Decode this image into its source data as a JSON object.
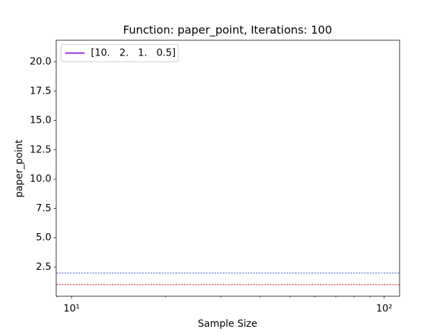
{
  "chart_data": {
    "type": "line",
    "title": "Function: paper_point, Iterations: 100",
    "xlabel": "Sample Size",
    "ylabel": "paper_point",
    "xscale": "log",
    "xlim": [
      8.93,
      112
    ],
    "ylim": [
      0.02,
      21.83
    ],
    "xticks": [
      {
        "value": 10,
        "label": "10¹"
      },
      {
        "value": 100,
        "label": "10²"
      }
    ],
    "xminorticks": [
      9,
      20,
      30,
      40,
      50,
      60,
      70,
      80,
      90
    ],
    "yticks": [
      2.5,
      {
        "value": 5,
        "label": "5.0"
      },
      7.5,
      {
        "value": 10,
        "label": "10.0"
      },
      12.5,
      {
        "value": 15,
        "label": "15.0"
      },
      17.5,
      {
        "value": 20,
        "label": "20.0"
      }
    ],
    "series": [
      {
        "name": "[10.   2.   1.   0.5]",
        "color": "#8a0fd1"
      }
    ],
    "hlines": [
      {
        "value": 2,
        "color": "#1f3fbf"
      },
      {
        "value": 1,
        "color": "#e41a1c"
      }
    ],
    "legend": "upper left"
  }
}
